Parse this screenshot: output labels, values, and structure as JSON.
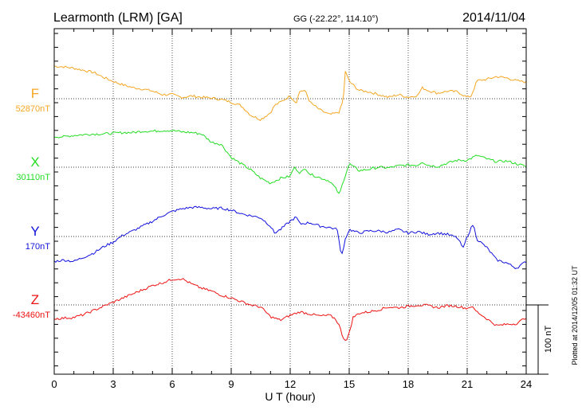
{
  "header": {
    "station": "Learmonth (LRM)  [GA]",
    "coords": "GG (-22.22°, 114.10°)",
    "date": "2014/11/04"
  },
  "footer": {
    "plotted": "Plotted at 2014/12/05 01:32 UT"
  },
  "chart_data": {
    "type": "line",
    "xlabel": "U T (hour)",
    "xlim": [
      0,
      24
    ],
    "xticks": [
      "0",
      "3",
      "6",
      "9",
      "12",
      "15",
      "18",
      "21",
      "24"
    ],
    "grid": true,
    "scale_bar": {
      "label": "100 nT",
      "value_nT": 100
    },
    "series": [
      {
        "name": "F",
        "baseline_label": "52870nT",
        "baseline_nT": 52870,
        "color": "#f5a623",
        "x": [
          0,
          0.5,
          1,
          1.5,
          2,
          2.5,
          3,
          3.5,
          4,
          4.5,
          5,
          5.5,
          6,
          6.5,
          7,
          7.5,
          8,
          8.5,
          9,
          9.5,
          10,
          10.5,
          11,
          11.2,
          11.5,
          12,
          12.3,
          12.5,
          12.8,
          13,
          13.5,
          14,
          14.3,
          14.5,
          14.7,
          14.8,
          15,
          15.5,
          16,
          16.5,
          17,
          17.5,
          18,
          18.5,
          18.7,
          19,
          19.5,
          20,
          20.5,
          21,
          21.2,
          21.5,
          22,
          22.5,
          23,
          23.5,
          24
        ],
        "values": [
          47,
          46,
          44,
          41,
          38,
          31,
          25,
          20,
          16,
          14,
          11,
          6,
          6,
          2,
          4,
          2,
          1,
          -1,
          -5,
          -10,
          -24,
          -30,
          -20,
          -10,
          -5,
          4,
          -6,
          12,
          10,
          -5,
          -16,
          -23,
          -21,
          -19,
          -2,
          40,
          25,
          12,
          10,
          6,
          2,
          6,
          2,
          5,
          16,
          12,
          8,
          11,
          10,
          2,
          4,
          26,
          28,
          32,
          30,
          26,
          24
        ]
      },
      {
        "name": "X",
        "baseline_label": "30110nT",
        "baseline_nT": 30110,
        "color": "#22dd22",
        "x": [
          0,
          0.5,
          1,
          1.5,
          2,
          2.5,
          3,
          3.5,
          4,
          4.5,
          5,
          5.5,
          6,
          6.5,
          7,
          7.5,
          8,
          8.5,
          9,
          9.5,
          10,
          10.5,
          11,
          11.5,
          12,
          12.2,
          12.5,
          12.8,
          13,
          13.5,
          14,
          14.3,
          14.5,
          14.7,
          15,
          15.5,
          16,
          16.5,
          17,
          17.5,
          18,
          18.5,
          18.7,
          19,
          19.5,
          20,
          20.5,
          21,
          21.5,
          22,
          22.5,
          23,
          23.5,
          24
        ],
        "values": [
          44,
          44,
          46,
          47,
          48,
          48,
          49,
          50,
          50,
          52,
          52,
          53,
          53,
          51,
          50,
          48,
          36,
          33,
          14,
          5,
          -4,
          -16,
          -23,
          -16,
          -13,
          0,
          -8,
          -2,
          -10,
          -15,
          -20,
          -30,
          -40,
          -20,
          5,
          -5,
          -3,
          0,
          -1,
          2,
          3,
          3,
          8,
          3,
          1,
          6,
          10,
          10,
          17,
          12,
          8,
          9,
          5,
          1
        ]
      },
      {
        "name": "Y",
        "baseline_label": "170nT",
        "baseline_nT": 170,
        "color": "#1111dd",
        "x": [
          0,
          0.5,
          1,
          1.5,
          2,
          2.5,
          3,
          3.5,
          4,
          4.5,
          5,
          5.5,
          6,
          6.5,
          7,
          7.5,
          8,
          8.5,
          9,
          9.5,
          10,
          10.5,
          11,
          11.2,
          11.5,
          12,
          12.3,
          12.5,
          13,
          13.5,
          14,
          14.4,
          14.6,
          14.8,
          15,
          15.5,
          16,
          16.5,
          17,
          17.5,
          18,
          18.5,
          19,
          19.5,
          20,
          20.5,
          20.8,
          21,
          21.3,
          21.5,
          22,
          22.5,
          23,
          23.5,
          24
        ],
        "values": [
          -36,
          -34,
          -36,
          -30,
          -24,
          -15,
          -8,
          2,
          8,
          15,
          22,
          30,
          36,
          40,
          42,
          42,
          40,
          41,
          38,
          33,
          30,
          27,
          15,
          5,
          10,
          22,
          28,
          18,
          20,
          15,
          13,
          10,
          -30,
          -4,
          10,
          5,
          8,
          8,
          6,
          10,
          5,
          7,
          3,
          5,
          3,
          -2,
          -17,
          0,
          18,
          -4,
          -16,
          -34,
          -38,
          -46,
          -36
        ]
      },
      {
        "name": "Z",
        "baseline_label": "-43460nT",
        "baseline_nT": -43460,
        "color": "#ee1111",
        "x": [
          0,
          0.5,
          1,
          1.5,
          2,
          2.5,
          3,
          3.5,
          4,
          4.5,
          5,
          5.5,
          6,
          6.5,
          7,
          7.5,
          8,
          8.5,
          9,
          9.5,
          10,
          10.5,
          11,
          11.5,
          12,
          12.5,
          13,
          13.5,
          14,
          14.3,
          14.5,
          14.7,
          14.9,
          15.2,
          15.5,
          16,
          16.5,
          17,
          17.5,
          18,
          18.5,
          19,
          19.5,
          20,
          20.5,
          21,
          21.2,
          21.5,
          22,
          22.5,
          23,
          23.5,
          24
        ],
        "values": [
          -20,
          -19,
          -18,
          -14,
          -8,
          -2,
          4,
          10,
          16,
          22,
          28,
          32,
          37,
          38,
          30,
          24,
          20,
          14,
          10,
          5,
          0,
          -3,
          -17,
          -22,
          -15,
          -10,
          -13,
          -16,
          -15,
          -20,
          -30,
          -48,
          -51,
          -18,
          -12,
          -10,
          -7,
          -3,
          -4,
          -2,
          0,
          -1,
          -4,
          -1,
          -2,
          -5,
          -2,
          -10,
          -20,
          -30,
          -28,
          -27,
          -18
        ]
      }
    ]
  }
}
